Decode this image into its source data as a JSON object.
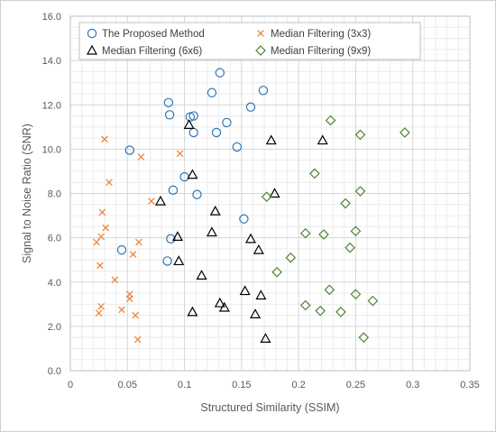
{
  "chart_data": {
    "type": "scatter",
    "xlabel": "Structured Similarity (SSIM)",
    "ylabel": "Signal to Noise Ratio (SNR)",
    "xlim": [
      0,
      0.35
    ],
    "ylim": [
      0,
      16
    ],
    "x_ticks": [
      "0",
      "0.05",
      "0.1",
      "0.15",
      "0.2",
      "0.25",
      "0.3",
      "0.35"
    ],
    "y_ticks": [
      "0.0",
      "2.0",
      "4.0",
      "6.0",
      "8.0",
      "10.0",
      "12.0",
      "14.0",
      "16.0"
    ],
    "grid": true,
    "minor_grid": true,
    "legend_position": "top",
    "series": [
      {
        "name": "The Proposed Method",
        "marker": "circle",
        "color": "#2E75B6",
        "points": [
          [
            0.131,
            13.45
          ],
          [
            0.086,
            12.1
          ],
          [
            0.124,
            12.55
          ],
          [
            0.169,
            12.65
          ],
          [
            0.087,
            11.55
          ],
          [
            0.105,
            11.45
          ],
          [
            0.108,
            11.5
          ],
          [
            0.158,
            11.9
          ],
          [
            0.137,
            11.2
          ],
          [
            0.108,
            10.75
          ],
          [
            0.128,
            10.75
          ],
          [
            0.146,
            10.1
          ],
          [
            0.052,
            9.95
          ],
          [
            0.1,
            8.75
          ],
          [
            0.09,
            8.15
          ],
          [
            0.111,
            7.95
          ],
          [
            0.152,
            6.85
          ],
          [
            0.088,
            5.95
          ],
          [
            0.045,
            5.45
          ],
          [
            0.085,
            4.95
          ]
        ]
      },
      {
        "name": "Median Filtering (3x3)",
        "marker": "x",
        "color": "#ED7D31",
        "points": [
          [
            0.03,
            10.45
          ],
          [
            0.062,
            9.65
          ],
          [
            0.096,
            9.8
          ],
          [
            0.034,
            8.5
          ],
          [
            0.071,
            7.65
          ],
          [
            0.028,
            7.15
          ],
          [
            0.031,
            6.45
          ],
          [
            0.027,
            6.05
          ],
          [
            0.023,
            5.8
          ],
          [
            0.06,
            5.8
          ],
          [
            0.055,
            5.25
          ],
          [
            0.026,
            4.75
          ],
          [
            0.039,
            4.1
          ],
          [
            0.052,
            3.45
          ],
          [
            0.052,
            3.25
          ],
          [
            0.027,
            2.9
          ],
          [
            0.045,
            2.75
          ],
          [
            0.025,
            2.6
          ],
          [
            0.057,
            2.5
          ],
          [
            0.059,
            1.4
          ]
        ]
      },
      {
        "name": "Median Filtering (6x6)",
        "marker": "triangle",
        "color": "#000000",
        "points": [
          [
            0.104,
            11.1
          ],
          [
            0.176,
            10.4
          ],
          [
            0.221,
            10.4
          ],
          [
            0.107,
            8.85
          ],
          [
            0.179,
            8.0
          ],
          [
            0.079,
            7.65
          ],
          [
            0.127,
            7.2
          ],
          [
            0.124,
            6.25
          ],
          [
            0.094,
            6.05
          ],
          [
            0.158,
            5.95
          ],
          [
            0.165,
            5.45
          ],
          [
            0.095,
            4.95
          ],
          [
            0.115,
            4.3
          ],
          [
            0.153,
            3.6
          ],
          [
            0.167,
            3.4
          ],
          [
            0.131,
            3.05
          ],
          [
            0.135,
            2.85
          ],
          [
            0.107,
            2.65
          ],
          [
            0.162,
            2.55
          ],
          [
            0.171,
            1.45
          ]
        ]
      },
      {
        "name": "Median Filtering (9x9)",
        "marker": "diamond",
        "color": "#548235",
        "points": [
          [
            0.228,
            11.3
          ],
          [
            0.254,
            10.65
          ],
          [
            0.293,
            10.75
          ],
          [
            0.214,
            8.9
          ],
          [
            0.254,
            8.1
          ],
          [
            0.172,
            7.85
          ],
          [
            0.241,
            7.55
          ],
          [
            0.206,
            6.2
          ],
          [
            0.222,
            6.15
          ],
          [
            0.25,
            6.3
          ],
          [
            0.245,
            5.55
          ],
          [
            0.193,
            5.1
          ],
          [
            0.181,
            4.45
          ],
          [
            0.227,
            3.65
          ],
          [
            0.25,
            3.45
          ],
          [
            0.265,
            3.15
          ],
          [
            0.206,
            2.95
          ],
          [
            0.219,
            2.7
          ],
          [
            0.237,
            2.65
          ],
          [
            0.257,
            1.5
          ]
        ]
      }
    ]
  }
}
